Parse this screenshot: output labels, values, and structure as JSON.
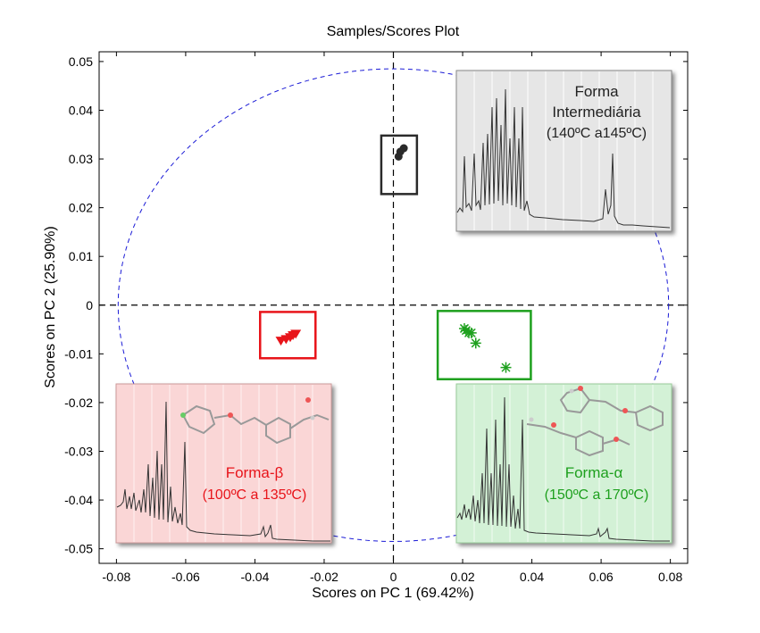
{
  "chart_data": {
    "type": "scatter",
    "title": "Samples/Scores Plot",
    "xlabel": "Scores on PC 1 (69.42%)",
    "ylabel": "Scores on PC 2 (25.90%)",
    "xlim": [
      -0.085,
      0.085
    ],
    "ylim": [
      -0.053,
      0.052
    ],
    "xticks": [
      -0.08,
      -0.06,
      -0.04,
      -0.02,
      0,
      0.02,
      0.04,
      0.06,
      0.08
    ],
    "xtick_labels": [
      "-0.08",
      "-0.06",
      "-0.04",
      "-0.02",
      "0",
      "0.02",
      "0.04",
      "0.06",
      "0.08"
    ],
    "yticks": [
      0.05,
      0.04,
      0.03,
      0.02,
      0.01,
      0,
      -0.01,
      -0.02,
      -0.03,
      -0.04,
      -0.05
    ],
    "ytick_labels": [
      "0.05",
      "0.04",
      "0.03",
      "0.02",
      "0.01",
      "0",
      "-0.01",
      "-0.02",
      "-0.03",
      "-0.04",
      "-0.05"
    ],
    "grid": false,
    "confidence_ellipse": {
      "rx": 0.0795,
      "ry": 0.0485,
      "color": "#1a1ad6"
    },
    "series": [
      {
        "marker": "dot",
        "color": "#2a2a2a",
        "points": [
          [
            0.0015,
            0.0305
          ],
          [
            0.003,
            0.0322
          ],
          [
            0.002,
            0.0315
          ]
        ],
        "box": {
          "x": [
            -0.0035,
            0.0068
          ],
          "y": [
            0.0228,
            0.0348
          ]
        }
      },
      {
        "marker": "triangle-down",
        "color": "#e8141a",
        "points": [
          [
            -0.0325,
            -0.0072
          ],
          [
            -0.031,
            -0.0069
          ],
          [
            -0.0298,
            -0.0065
          ],
          [
            -0.029,
            -0.0061
          ],
          [
            -0.0282,
            -0.0058
          ]
        ],
        "box": {
          "x": [
            -0.0385,
            -0.0225
          ],
          "y": [
            -0.0014,
            -0.0109
          ]
        }
      },
      {
        "marker": "asterisk",
        "color": "#1ea01e",
        "points": [
          [
            0.0205,
            -0.0048
          ],
          [
            0.021,
            -0.0052
          ],
          [
            0.0218,
            -0.0057
          ],
          [
            0.0225,
            -0.0057
          ],
          [
            0.0238,
            -0.0078
          ],
          [
            0.0325,
            -0.0128
          ]
        ],
        "box": {
          "x": [
            0.0128,
            0.0397
          ],
          "y": [
            -0.0012,
            -0.0152
          ]
        }
      }
    ],
    "annotations": [
      {
        "text_lines": [
          "Forma",
          "Intermediária",
          "(140ºC a145ºC)"
        ],
        "text_color": "#222222",
        "bg": "#e6e6e6"
      },
      {
        "text_lines": [
          "Forma-β",
          "(100ºC a 135ºC)"
        ],
        "text_color": "#e8141a",
        "bg": "#fad6d6"
      },
      {
        "text_lines": [
          "Forma-α",
          "(150ºC a 170ºC)"
        ],
        "text_color": "#1ea01e",
        "bg": "#d3f1d6"
      }
    ]
  }
}
